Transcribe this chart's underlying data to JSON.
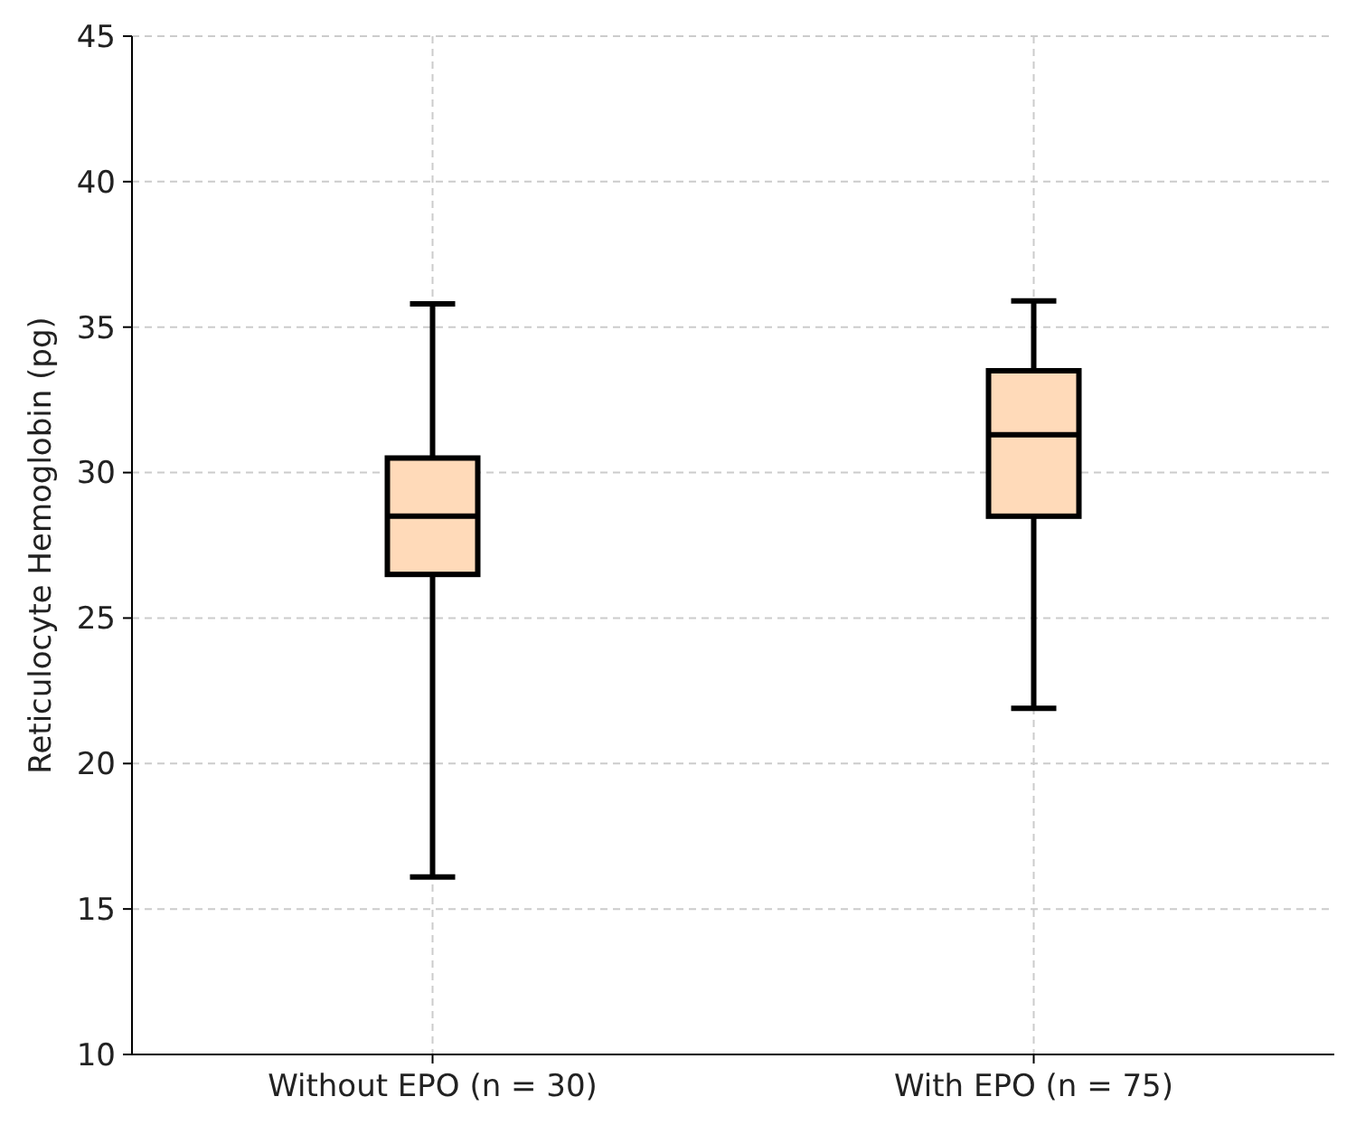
{
  "chart_data": {
    "type": "box",
    "ylabel": "Reticulocyte Hemoglobin (pg)",
    "categories": [
      "Without EPO (n = 30)",
      "With EPO (n = 75)"
    ],
    "boxes": [
      {
        "low": 16.1,
        "q1": 26.5,
        "median": 28.5,
        "q3": 30.5,
        "high": 35.8
      },
      {
        "low": 21.9,
        "q1": 28.5,
        "median": 31.3,
        "q3": 33.5,
        "high": 35.9
      }
    ],
    "color": "#ffdab9",
    "ylim": [
      10,
      45
    ],
    "yticks": [
      10,
      15,
      20,
      25,
      30,
      35,
      40,
      45
    ],
    "grid": true
  }
}
